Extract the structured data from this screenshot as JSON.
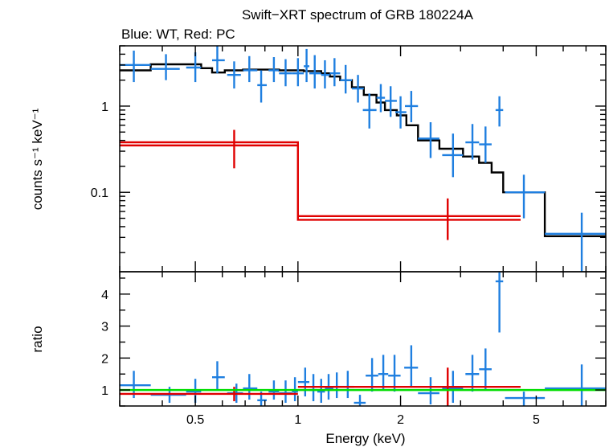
{
  "chart_data": [
    {
      "type": "scatter",
      "title": "Swift−XRT spectrum of GRB 180224A",
      "subtitle": "Blue: WT, Red: PC",
      "ylabel": "counts s⁻¹ keV⁻¹",
      "xscale": "log",
      "yscale": "log",
      "xlim": [
        0.3,
        8
      ],
      "ylim": [
        0.012,
        5
      ],
      "yticks": [
        {
          "value": 1,
          "label": "1"
        },
        {
          "value": 0.1,
          "label": "0.1"
        }
      ],
      "colors": {
        "wt": "#1f7fe0",
        "pc": "#e00000",
        "model": "#000000"
      },
      "series": [
        {
          "key": "wt",
          "points": [
            {
              "x": 0.33,
              "xerr": [
                0.3,
                0.37
              ],
              "y": 3.0,
              "yerr": [
                1.9,
                4.4
              ]
            },
            {
              "x": 0.41,
              "xerr": [
                0.37,
                0.45
              ],
              "y": 2.7,
              "yerr": [
                2.0,
                4.0
              ]
            },
            {
              "x": 0.5,
              "xerr": [
                0.47,
                0.52
              ],
              "y": 2.8,
              "yerr": [
                1.9,
                4.2
              ]
            },
            {
              "x": 0.58,
              "xerr": [
                0.56,
                0.61
              ],
              "y": 3.4,
              "yerr": [
                2.4,
                5.0
              ]
            },
            {
              "x": 0.65,
              "xerr": [
                0.62,
                0.68
              ],
              "y": 2.3,
              "yerr": [
                1.6,
                3.3
              ]
            },
            {
              "x": 0.72,
              "xerr": [
                0.69,
                0.76
              ],
              "y": 2.6,
              "yerr": [
                1.9,
                3.8
              ]
            },
            {
              "x": 0.78,
              "xerr": [
                0.76,
                0.81
              ],
              "y": 1.75,
              "yerr": [
                1.1,
                2.6
              ]
            },
            {
              "x": 0.85,
              "xerr": [
                0.82,
                0.88
              ],
              "y": 2.6,
              "yerr": [
                1.9,
                3.7
              ]
            },
            {
              "x": 0.92,
              "xerr": [
                0.88,
                0.96
              ],
              "y": 2.4,
              "yerr": [
                1.7,
                3.5
              ]
            },
            {
              "x": 1.0,
              "xerr": [
                0.96,
                1.04
              ],
              "y": 2.4,
              "yerr": [
                1.7,
                3.6
              ]
            },
            {
              "x": 1.06,
              "xerr": [
                1.04,
                1.08
              ],
              "y": 2.9,
              "yerr": [
                1.9,
                4.6
              ]
            },
            {
              "x": 1.12,
              "xerr": [
                1.08,
                1.17
              ],
              "y": 2.4,
              "yerr": [
                1.6,
                3.9
              ]
            },
            {
              "x": 1.2,
              "xerr": [
                1.17,
                1.24
              ],
              "y": 2.3,
              "yerr": [
                1.6,
                3.4
              ]
            },
            {
              "x": 1.28,
              "xerr": [
                1.24,
                1.33
              ],
              "y": 2.4,
              "yerr": [
                1.7,
                3.6
              ]
            },
            {
              "x": 1.38,
              "xerr": [
                1.33,
                1.44
              ],
              "y": 2.0,
              "yerr": [
                1.4,
                3.0
              ]
            },
            {
              "x": 1.5,
              "xerr": [
                1.44,
                1.56
              ],
              "y": 1.6,
              "yerr": [
                1.1,
                2.3
              ]
            },
            {
              "x": 1.62,
              "xerr": [
                1.55,
                1.7
              ],
              "y": 0.9,
              "yerr": [
                0.55,
                1.4
              ]
            },
            {
              "x": 1.75,
              "xerr": [
                1.7,
                1.8
              ],
              "y": 1.25,
              "yerr": [
                0.85,
                1.8
              ]
            },
            {
              "x": 1.87,
              "xerr": [
                1.8,
                1.95
              ],
              "y": 1.15,
              "yerr": [
                0.75,
                1.7
              ]
            },
            {
              "x": 2.0,
              "xerr": [
                1.93,
                2.08
              ],
              "y": 0.85,
              "yerr": [
                0.55,
                1.3
              ]
            },
            {
              "x": 2.15,
              "xerr": [
                2.06,
                2.25
              ],
              "y": 1.0,
              "yerr": [
                0.65,
                1.5
              ]
            },
            {
              "x": 2.45,
              "xerr": [
                2.25,
                2.6
              ],
              "y": 0.42,
              "yerr": [
                0.25,
                0.65
              ]
            },
            {
              "x": 2.85,
              "xerr": [
                2.65,
                3.05
              ],
              "y": 0.27,
              "yerr": [
                0.15,
                0.48
              ]
            },
            {
              "x": 3.25,
              "xerr": [
                3.1,
                3.4
              ],
              "y": 0.38,
              "yerr": [
                0.24,
                0.62
              ]
            },
            {
              "x": 3.55,
              "xerr": [
                3.4,
                3.7
              ],
              "y": 0.36,
              "yerr": [
                0.22,
                0.58
              ]
            },
            {
              "x": 3.9,
              "xerr": [
                3.8,
                4.0
              ],
              "y": 0.9,
              "yerr": [
                0.58,
                1.3
              ]
            },
            {
              "x": 4.6,
              "xerr": [
                4.05,
                5.3
              ],
              "y": 0.1,
              "yerr": [
                0.05,
                0.16
              ]
            },
            {
              "x": 6.8,
              "xerr": [
                5.3,
                8.0
              ],
              "y": 0.033,
              "yerr": [
                0.012,
                0.058
              ]
            }
          ]
        },
        {
          "key": "pc",
          "points": [
            {
              "x": 0.65,
              "xerr": [
                0.3,
                1.0
              ],
              "y": 0.35,
              "yerr": [
                0.19,
                0.53
              ]
            },
            {
              "x": 2.75,
              "xerr": [
                1.0,
                4.5
              ],
              "y": 0.053,
              "yerr": [
                0.028,
                0.085
              ]
            }
          ]
        },
        {
          "key": "wt_model",
          "type": "step",
          "edges": [
            0.3,
            0.37,
            0.52,
            0.56,
            0.61,
            0.69,
            0.81,
            0.88,
            1.04,
            1.17,
            1.24,
            1.33,
            1.44,
            1.56,
            1.7,
            1.8,
            1.95,
            2.08,
            2.25,
            2.6,
            3.05,
            3.4,
            3.7,
            4.0,
            5.3,
            8.0
          ],
          "values": [
            2.6,
            3.05,
            2.75,
            2.45,
            2.6,
            2.65,
            2.65,
            2.6,
            2.55,
            2.4,
            2.2,
            2.0,
            1.65,
            1.35,
            1.1,
            0.9,
            0.78,
            0.6,
            0.4,
            0.32,
            0.26,
            0.22,
            0.17,
            0.1,
            0.031
          ]
        },
        {
          "key": "pc_model",
          "type": "step",
          "edges": [
            0.3,
            1.0,
            4.5
          ],
          "values": [
            0.38,
            0.048
          ]
        }
      ]
    },
    {
      "type": "scatter",
      "xlabel": "Energy (keV)",
      "ylabel": "ratio",
      "xscale": "log",
      "xlim": [
        0.3,
        8
      ],
      "ylim": [
        0.5,
        4.7
      ],
      "xticks": [
        {
          "value": 0.5,
          "label": "0.5"
        },
        {
          "value": 1,
          "label": "1"
        },
        {
          "value": 2,
          "label": "2"
        },
        {
          "value": 5,
          "label": "5"
        }
      ],
      "yticks": [
        {
          "value": 1,
          "label": "1"
        },
        {
          "value": 2,
          "label": "2"
        },
        {
          "value": 3,
          "label": "3"
        },
        {
          "value": 4,
          "label": "4"
        }
      ],
      "reference_line": 1,
      "reference_color": "#00dd00",
      "series": [
        {
          "key": "wt",
          "points": [
            {
              "x": 0.33,
              "xerr": [
                0.3,
                0.37
              ],
              "y": 1.15,
              "yerr": [
                0.75,
                1.6
              ]
            },
            {
              "x": 0.42,
              "xerr": [
                0.37,
                0.47
              ],
              "y": 0.85,
              "yerr": [
                0.6,
                1.1
              ]
            },
            {
              "x": 0.5,
              "xerr": [
                0.47,
                0.52
              ],
              "y": 0.95,
              "yerr": [
                0.6,
                1.35
              ]
            },
            {
              "x": 0.58,
              "xerr": [
                0.56,
                0.61
              ],
              "y": 1.4,
              "yerr": [
                1.0,
                1.9
              ]
            },
            {
              "x": 0.66,
              "xerr": [
                0.62,
                0.69
              ],
              "y": 0.9,
              "yerr": [
                0.6,
                1.2
              ]
            },
            {
              "x": 0.72,
              "xerr": [
                0.69,
                0.76
              ],
              "y": 1.05,
              "yerr": [
                0.7,
                1.5
              ]
            },
            {
              "x": 0.78,
              "xerr": [
                0.76,
                0.81
              ],
              "y": 0.68,
              "yerr": [
                0.45,
                0.95
              ]
            },
            {
              "x": 0.85,
              "xerr": [
                0.82,
                0.88
              ],
              "y": 0.95,
              "yerr": [
                0.7,
                1.3
              ]
            },
            {
              "x": 0.92,
              "xerr": [
                0.88,
                0.96
              ],
              "y": 0.9,
              "yerr": [
                0.6,
                1.3
              ]
            },
            {
              "x": 0.98,
              "xerr": [
                0.96,
                1.0
              ],
              "y": 0.95,
              "yerr": [
                0.65,
                1.4
              ]
            },
            {
              "x": 1.05,
              "xerr": [
                1.0,
                1.08
              ],
              "y": 1.25,
              "yerr": [
                0.8,
                1.7
              ]
            },
            {
              "x": 1.11,
              "xerr": [
                1.08,
                1.14
              ],
              "y": 1.0,
              "yerr": [
                0.65,
                1.5
              ]
            },
            {
              "x": 1.17,
              "xerr": [
                1.14,
                1.2
              ],
              "y": 0.95,
              "yerr": [
                0.6,
                1.35
              ]
            },
            {
              "x": 1.23,
              "xerr": [
                1.2,
                1.27
              ],
              "y": 1.05,
              "yerr": [
                0.7,
                1.5
              ]
            },
            {
              "x": 1.3,
              "xerr": [
                1.27,
                1.35
              ],
              "y": 1.1,
              "yerr": [
                0.75,
                1.55
              ]
            },
            {
              "x": 1.4,
              "xerr": [
                1.35,
                1.46
              ],
              "y": 1.1,
              "yerr": [
                0.75,
                1.6
              ]
            },
            {
              "x": 1.52,
              "xerr": [
                1.46,
                1.58
              ],
              "y": 0.6,
              "yerr": [
                0.4,
                0.85
              ]
            },
            {
              "x": 1.65,
              "xerr": [
                1.58,
                1.72
              ],
              "y": 1.45,
              "yerr": [
                0.95,
                2.0
              ]
            },
            {
              "x": 1.78,
              "xerr": [
                1.72,
                1.84
              ],
              "y": 1.5,
              "yerr": [
                1.0,
                2.1
              ]
            },
            {
              "x": 1.92,
              "xerr": [
                1.84,
                2.0
              ],
              "y": 1.45,
              "yerr": [
                0.95,
                2.1
              ]
            },
            {
              "x": 2.15,
              "xerr": [
                2.05,
                2.25
              ],
              "y": 1.7,
              "yerr": [
                1.1,
                2.4
              ]
            },
            {
              "x": 2.45,
              "xerr": [
                2.25,
                2.6
              ],
              "y": 0.9,
              "yerr": [
                0.55,
                1.4
              ]
            },
            {
              "x": 2.85,
              "xerr": [
                2.65,
                3.05
              ],
              "y": 1.05,
              "yerr": [
                0.6,
                1.6
              ]
            },
            {
              "x": 3.25,
              "xerr": [
                3.1,
                3.4
              ],
              "y": 1.5,
              "yerr": [
                0.95,
                2.1
              ]
            },
            {
              "x": 3.55,
              "xerr": [
                3.4,
                3.7
              ],
              "y": 1.65,
              "yerr": [
                1.0,
                2.3
              ]
            },
            {
              "x": 3.9,
              "xerr": [
                3.8,
                4.0
              ],
              "y": 4.4,
              "yerr": [
                2.8,
                4.7
              ]
            },
            {
              "x": 4.6,
              "xerr": [
                4.05,
                5.3
              ],
              "y": 0.75,
              "yerr": [
                0.5,
                0.95
              ]
            },
            {
              "x": 6.8,
              "xerr": [
                5.3,
                8.0
              ],
              "y": 1.05,
              "yerr": [
                0.5,
                1.8
              ]
            }
          ]
        },
        {
          "key": "pc",
          "points": [
            {
              "x": 0.65,
              "xerr": [
                0.3,
                1.0
              ],
              "y": 0.88,
              "yerr": [
                0.65,
                1.1
              ]
            },
            {
              "x": 2.75,
              "xerr": [
                1.0,
                4.5
              ],
              "y": 1.1,
              "yerr": [
                0.5,
                1.7
              ]
            }
          ]
        }
      ]
    }
  ]
}
